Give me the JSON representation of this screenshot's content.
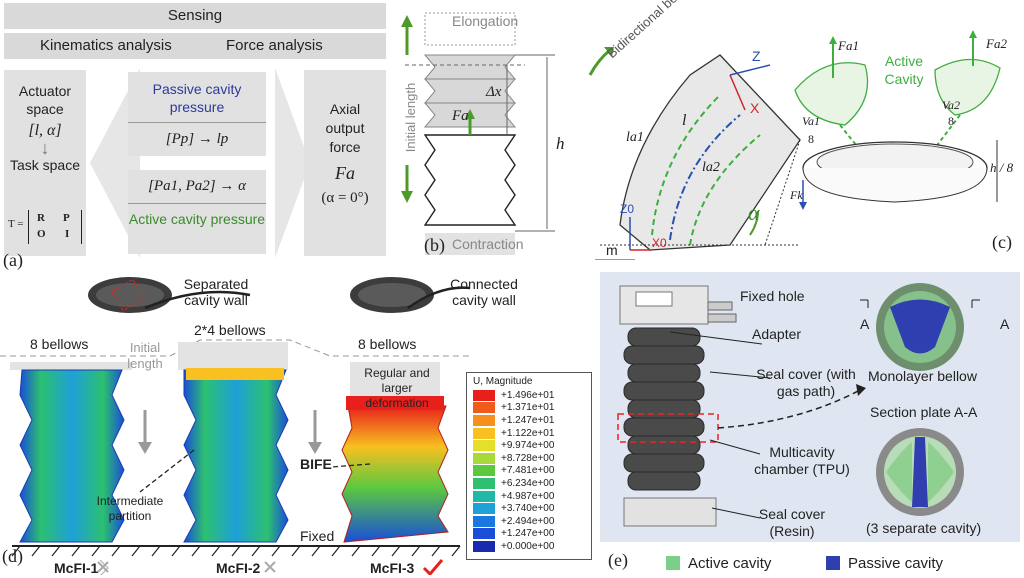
{
  "panel_a": {
    "letter": "(a)",
    "sensing": "Sensing",
    "kinematics": "Kinematics analysis",
    "force": "Force analysis",
    "actuator_space": "Actuator space",
    "actuator_vars": "[l, α]",
    "task_space": "Task space",
    "T_eq": "T =",
    "T_matrix": [
      "R",
      "P",
      "O",
      "I"
    ],
    "passive_label": "Passive cavity pressure",
    "passive_eq": "[Pp] → lp",
    "active_eq": "[Pa1, Pa2] → α",
    "active_label": "Active cavity pressure",
    "axial": "Axial output force",
    "Fa": "Fa",
    "alpha0": "(α = 0°)"
  },
  "panel_b": {
    "letter": "(b)",
    "elongation": "Elongation",
    "contraction": "Contraction",
    "initial_length": "Initial length",
    "dx": "Δx",
    "Fa": "Fa",
    "h": "h",
    "bidirectional": "Bidirectional bending",
    "z": "Z",
    "x": "X",
    "z0": "Z0",
    "x0": "X0",
    "l": "l",
    "la1": "la1",
    "la2": "la2",
    "alpha": "α",
    "m": "m"
  },
  "panel_c": {
    "letter": "(c)",
    "fa1": "Fa1",
    "fa2": "Fa2",
    "active_cavity": "Active Cavity",
    "va1": "Va1",
    "va2": "Va2",
    "eight": "8",
    "h8": "h / 8",
    "fk": "Fk"
  },
  "panel_d": {
    "letter": "(d)",
    "separated": "Separated cavity wall",
    "connected": "Connected cavity wall",
    "bellows1": "8 bellows",
    "bellows2": "2*4 bellows",
    "bellows3": "8 bellows",
    "initial_length": "Initial length",
    "regular": "Regular and larger deformation",
    "intermediate": "Intermediate partition",
    "bife": "BIFE",
    "fixed": "Fixed",
    "mcfi1": "McFI-1",
    "mcfi2": "McFI-2",
    "mcfi3": "McFI-3",
    "legend_title": "U, Magnitude",
    "legend_values": [
      "+1.496e+01",
      "+1.371e+01",
      "+1.247e+01",
      "+1.122e+01",
      "+9.974e+00",
      "+8.728e+00",
      "+7.481e+00",
      "+6.234e+00",
      "+4.987e+00",
      "+3.740e+00",
      "+2.494e+00",
      "+1.247e+00",
      "+0.000e+00"
    ],
    "legend_colors": [
      "#e8201c",
      "#f05a1a",
      "#f6901c",
      "#f8c020",
      "#e4e02a",
      "#a8d83a",
      "#5cc840",
      "#2cc070",
      "#22b8a8",
      "#1ea0d8",
      "#1a78e0",
      "#1a4ed8",
      "#1a2ab0"
    ]
  },
  "panel_e": {
    "letter": "(e)",
    "fixed_hole": "Fixed hole",
    "adapter": "Adapter",
    "seal_cover_top": "Seal cover (with gas path)",
    "multicavity": "Multicavity chamber (TPU)",
    "seal_cover_bottom": "Seal cover (Resin)",
    "monolayer": "Monolayer bellow",
    "section_plate": "Section plate A-A",
    "three_cavity": "(3 separate cavity)",
    "a_left": "A",
    "a_right": "A",
    "active_cavity": "Active cavity",
    "passive_cavity": "Passive cavity",
    "active_color": "#7ccf8a",
    "passive_color": "#2f3fb0"
  }
}
